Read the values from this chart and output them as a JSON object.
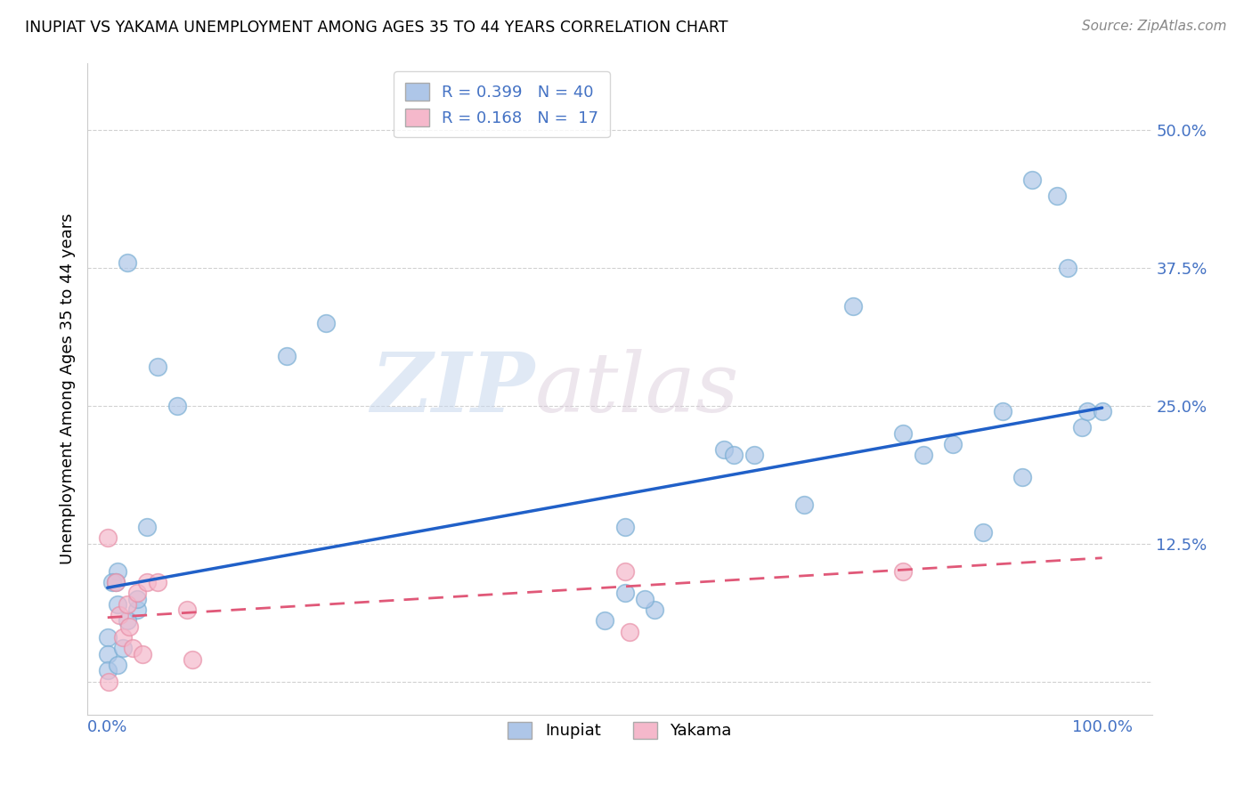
{
  "title": "INUPIAT VS YAKAMA UNEMPLOYMENT AMONG AGES 35 TO 44 YEARS CORRELATION CHART",
  "source": "Source: ZipAtlas.com",
  "ylabel": "Unemployment Among Ages 35 to 44 years",
  "xlim": [
    -0.02,
    1.05
  ],
  "ylim": [
    -0.03,
    0.56
  ],
  "xticks": [
    0.0,
    0.25,
    0.5,
    0.75,
    1.0
  ],
  "xtick_labels": [
    "0.0%",
    "",
    "",
    "",
    "100.0%"
  ],
  "yticks": [
    0.0,
    0.125,
    0.25,
    0.375,
    0.5
  ],
  "ytick_labels": [
    "",
    "12.5%",
    "25.0%",
    "37.5%",
    "50.0%"
  ],
  "watermark_zip": "ZIP",
  "watermark_atlas": "atlas",
  "inupiat_color": "#aec6e8",
  "inupiat_edge_color": "#7aafd4",
  "yakama_color": "#f5b8cb",
  "yakama_edge_color": "#e890a8",
  "inupiat_line_color": "#2060c8",
  "yakama_line_color": "#e05878",
  "tick_color": "#4472c4",
  "inupiat_x": [
    0.02,
    0.05,
    0.18,
    0.22,
    0.04,
    0.01,
    0.005,
    0.03,
    0.02,
    0.008,
    0.0,
    0.0,
    0.01,
    0.015,
    0.03,
    0.07,
    0.52,
    0.55,
    0.5,
    0.62,
    0.7,
    0.8,
    0.85,
    0.9,
    0.93,
    0.955,
    0.965,
    0.98,
    0.985,
    1.0,
    0.63,
    0.65,
    0.75,
    0.82,
    0.88,
    0.92,
    0.0,
    0.01,
    0.52,
    0.54
  ],
  "inupiat_y": [
    0.38,
    0.285,
    0.295,
    0.325,
    0.14,
    0.1,
    0.09,
    0.065,
    0.055,
    0.09,
    0.04,
    0.025,
    0.07,
    0.03,
    0.075,
    0.25,
    0.14,
    0.065,
    0.055,
    0.21,
    0.16,
    0.225,
    0.215,
    0.245,
    0.455,
    0.44,
    0.375,
    0.23,
    0.245,
    0.245,
    0.205,
    0.205,
    0.34,
    0.205,
    0.135,
    0.185,
    0.01,
    0.015,
    0.08,
    0.075
  ],
  "yakama_x": [
    0.0,
    0.001,
    0.008,
    0.012,
    0.015,
    0.02,
    0.022,
    0.025,
    0.03,
    0.035,
    0.04,
    0.05,
    0.08,
    0.085,
    0.52,
    0.525,
    0.8
  ],
  "yakama_y": [
    0.13,
    0.0,
    0.09,
    0.06,
    0.04,
    0.07,
    0.05,
    0.03,
    0.08,
    0.025,
    0.09,
    0.09,
    0.065,
    0.02,
    0.1,
    0.045,
    0.1
  ],
  "inupiat_trendline_x": [
    0.0,
    1.0
  ],
  "inupiat_trendline_y": [
    0.085,
    0.248
  ],
  "yakama_trendline_x": [
    0.0,
    1.0
  ],
  "yakama_trendline_y": [
    0.058,
    0.112
  ]
}
